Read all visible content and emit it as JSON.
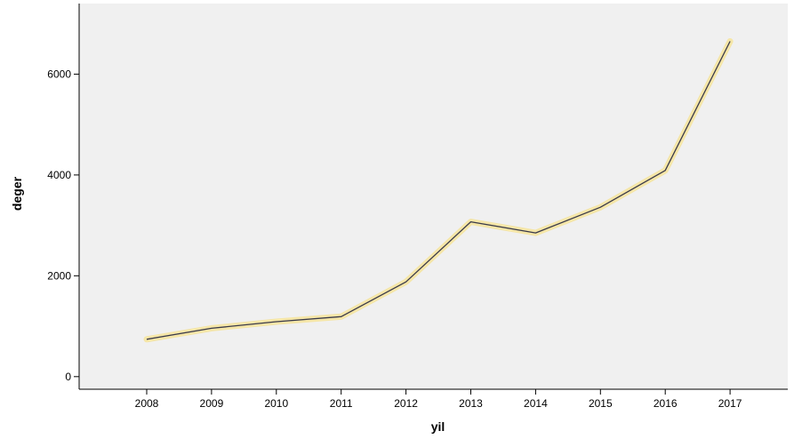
{
  "chart_data": {
    "type": "line",
    "title": "",
    "xlabel": "yil",
    "ylabel": "deger",
    "categories": [
      "2008",
      "2009",
      "2010",
      "2011",
      "2012",
      "2013",
      "2014",
      "2015",
      "2016",
      "2017"
    ],
    "series": [
      {
        "values": [
          740,
          960,
          1090,
          1190,
          1880,
          3070,
          2850,
          3360,
          4090,
          6650
        ]
      }
    ],
    "ylim": [
      -250,
      7400
    ],
    "yticks": [
      0,
      2000,
      4000,
      6000
    ],
    "ytick_labels": [
      "0",
      "2000",
      "4000",
      "6000"
    ],
    "grid": false,
    "legend": "none",
    "colors": {
      "plot_background": "#f0f0f0",
      "line": "#3a3a4a",
      "line_halo": "#f5e6a8",
      "axis": "#000000"
    }
  }
}
